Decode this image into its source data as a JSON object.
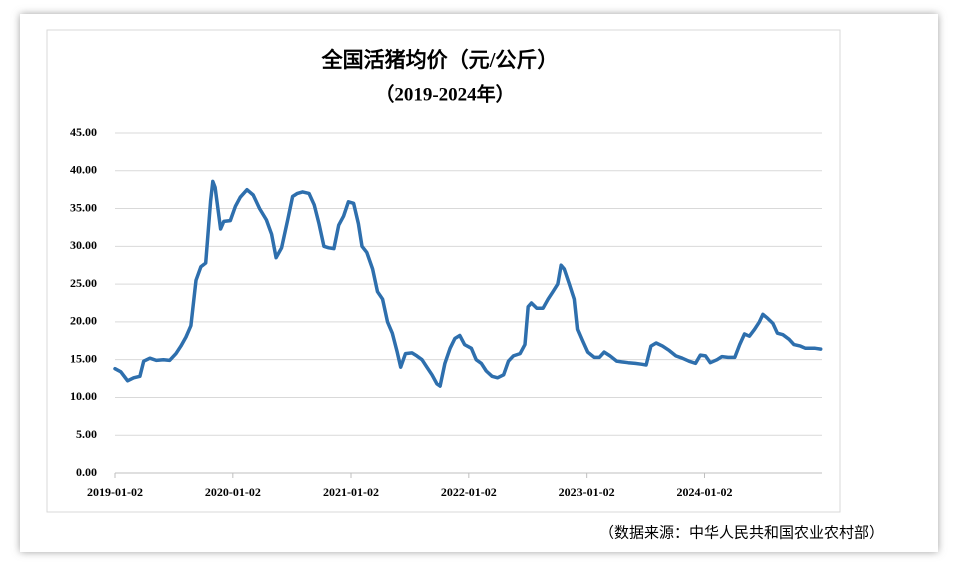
{
  "chart_data": {
    "type": "line",
    "title": "全国活猪均价（元/公斤）",
    "subtitle": "（2019-2024年）",
    "source": "（数据来源：中华人民共和国农业农村部）",
    "color": "#2e6fad",
    "grid": true,
    "xlim": [
      "2019-01-02",
      "2024-12-31"
    ],
    "xticks": [
      "2019-01-02",
      "2020-01-02",
      "2021-01-02",
      "2022-01-02",
      "2023-01-02",
      "2024-01-02"
    ],
    "ylim": [
      0,
      45
    ],
    "yticks": [
      {
        "value": 0,
        "label": "0.00"
      },
      {
        "value": 5,
        "label": "5.00"
      },
      {
        "value": 10,
        "label": "10.00"
      },
      {
        "value": 15,
        "label": "15.00"
      },
      {
        "value": 20,
        "label": "20.00"
      },
      {
        "value": 25,
        "label": "25.00"
      },
      {
        "value": 30,
        "label": "30.00"
      },
      {
        "value": 35,
        "label": "35.00"
      },
      {
        "value": 40,
        "label": "40.00"
      },
      {
        "value": 45,
        "label": "45.00"
      }
    ],
    "x": [
      "2019-01-02",
      "2019-01-20",
      "2019-02-10",
      "2019-03-01",
      "2019-03-20",
      "2019-04-01",
      "2019-04-20",
      "2019-05-10",
      "2019-06-01",
      "2019-06-20",
      "2019-07-10",
      "2019-07-25",
      "2019-08-10",
      "2019-08-25",
      "2019-09-10",
      "2019-09-25",
      "2019-10-10",
      "2019-10-25",
      "2019-11-01",
      "2019-11-08",
      "2019-11-25",
      "2019-12-05",
      "2019-12-25",
      "2020-01-10",
      "2020-01-25",
      "2020-02-15",
      "2020-03-05",
      "2020-03-25",
      "2020-04-15",
      "2020-05-01",
      "2020-05-15",
      "2020-06-01",
      "2020-06-20",
      "2020-07-05",
      "2020-07-20",
      "2020-08-05",
      "2020-08-25",
      "2020-09-10",
      "2020-09-25",
      "2020-10-10",
      "2020-10-25",
      "2020-11-10",
      "2020-11-25",
      "2020-12-10",
      "2020-12-25",
      "2021-01-10",
      "2021-01-25",
      "2021-02-05",
      "2021-02-20",
      "2021-03-10",
      "2021-03-25",
      "2021-04-10",
      "2021-04-25",
      "2021-05-10",
      "2021-05-25",
      "2021-06-05",
      "2021-06-20",
      "2021-07-10",
      "2021-07-25",
      "2021-08-10",
      "2021-08-25",
      "2021-09-10",
      "2021-09-25",
      "2021-10-05",
      "2021-10-20",
      "2021-11-05",
      "2021-11-20",
      "2021-12-05",
      "2021-12-20",
      "2022-01-10",
      "2022-01-25",
      "2022-02-10",
      "2022-02-25",
      "2022-03-15",
      "2022-04-01",
      "2022-04-20",
      "2022-05-05",
      "2022-05-20",
      "2022-06-10",
      "2022-06-25",
      "2022-07-05",
      "2022-07-15",
      "2022-08-01",
      "2022-08-20",
      "2022-09-05",
      "2022-09-20",
      "2022-10-05",
      "2022-10-15",
      "2022-10-25",
      "2022-11-10",
      "2022-11-25",
      "2022-12-05",
      "2022-12-20",
      "2023-01-05",
      "2023-01-25",
      "2023-02-10",
      "2023-02-25",
      "2023-03-15",
      "2023-04-05",
      "2023-04-20",
      "2023-05-10",
      "2023-06-01",
      "2023-06-20",
      "2023-07-05",
      "2023-07-20",
      "2023-08-05",
      "2023-08-25",
      "2023-09-15",
      "2023-10-05",
      "2023-10-25",
      "2023-11-15",
      "2023-12-05",
      "2023-12-20",
      "2024-01-05",
      "2024-01-20",
      "2024-02-10",
      "2024-02-25",
      "2024-03-15",
      "2024-04-05",
      "2024-04-20",
      "2024-05-05",
      "2024-05-20",
      "2024-06-05",
      "2024-06-20",
      "2024-07-01",
      "2024-07-15",
      "2024-08-01",
      "2024-08-15",
      "2024-09-01",
      "2024-09-20",
      "2024-10-05",
      "2024-10-25",
      "2024-11-10",
      "2024-12-10",
      "2024-12-27"
    ],
    "values": [
      13.8,
      13.4,
      12.2,
      12.6,
      12.8,
      14.8,
      15.2,
      14.9,
      15.0,
      14.9,
      15.8,
      16.8,
      18.0,
      19.5,
      25.5,
      27.3,
      27.8,
      36.0,
      38.6,
      37.8,
      32.3,
      33.3,
      33.4,
      35.3,
      36.5,
      37.5,
      36.8,
      35.0,
      33.5,
      31.6,
      28.5,
      29.8,
      33.5,
      36.6,
      37.0,
      37.2,
      37.0,
      35.5,
      33.0,
      30.0,
      29.8,
      29.7,
      32.8,
      34.0,
      35.9,
      35.7,
      33.0,
      30.0,
      29.2,
      27.0,
      24.0,
      23.0,
      20.0,
      18.5,
      16.0,
      14.0,
      15.8,
      15.9,
      15.5,
      15.0,
      14.0,
      13.0,
      11.8,
      11.5,
      14.5,
      16.5,
      17.8,
      18.2,
      17.0,
      16.5,
      15.0,
      14.5,
      13.5,
      12.8,
      12.6,
      13.0,
      14.8,
      15.5,
      15.8,
      17.0,
      22.0,
      22.5,
      21.8,
      21.8,
      23.0,
      24.0,
      25.0,
      27.5,
      27.0,
      25.0,
      23.0,
      19.0,
      17.5,
      16.0,
      15.3,
      15.3,
      16.0,
      15.5,
      14.8,
      14.7,
      14.6,
      14.5,
      14.4,
      14.3,
      16.8,
      17.2,
      16.8,
      16.2,
      15.5,
      15.2,
      14.8,
      14.5,
      15.6,
      15.5,
      14.6,
      15.0,
      15.4,
      15.3,
      15.3,
      17.0,
      18.4,
      18.1,
      19.0,
      20.0,
      21.0,
      20.5,
      19.8,
      18.5,
      18.3,
      17.7,
      17.0,
      16.8,
      16.5,
      16.5,
      16.4
    ]
  }
}
